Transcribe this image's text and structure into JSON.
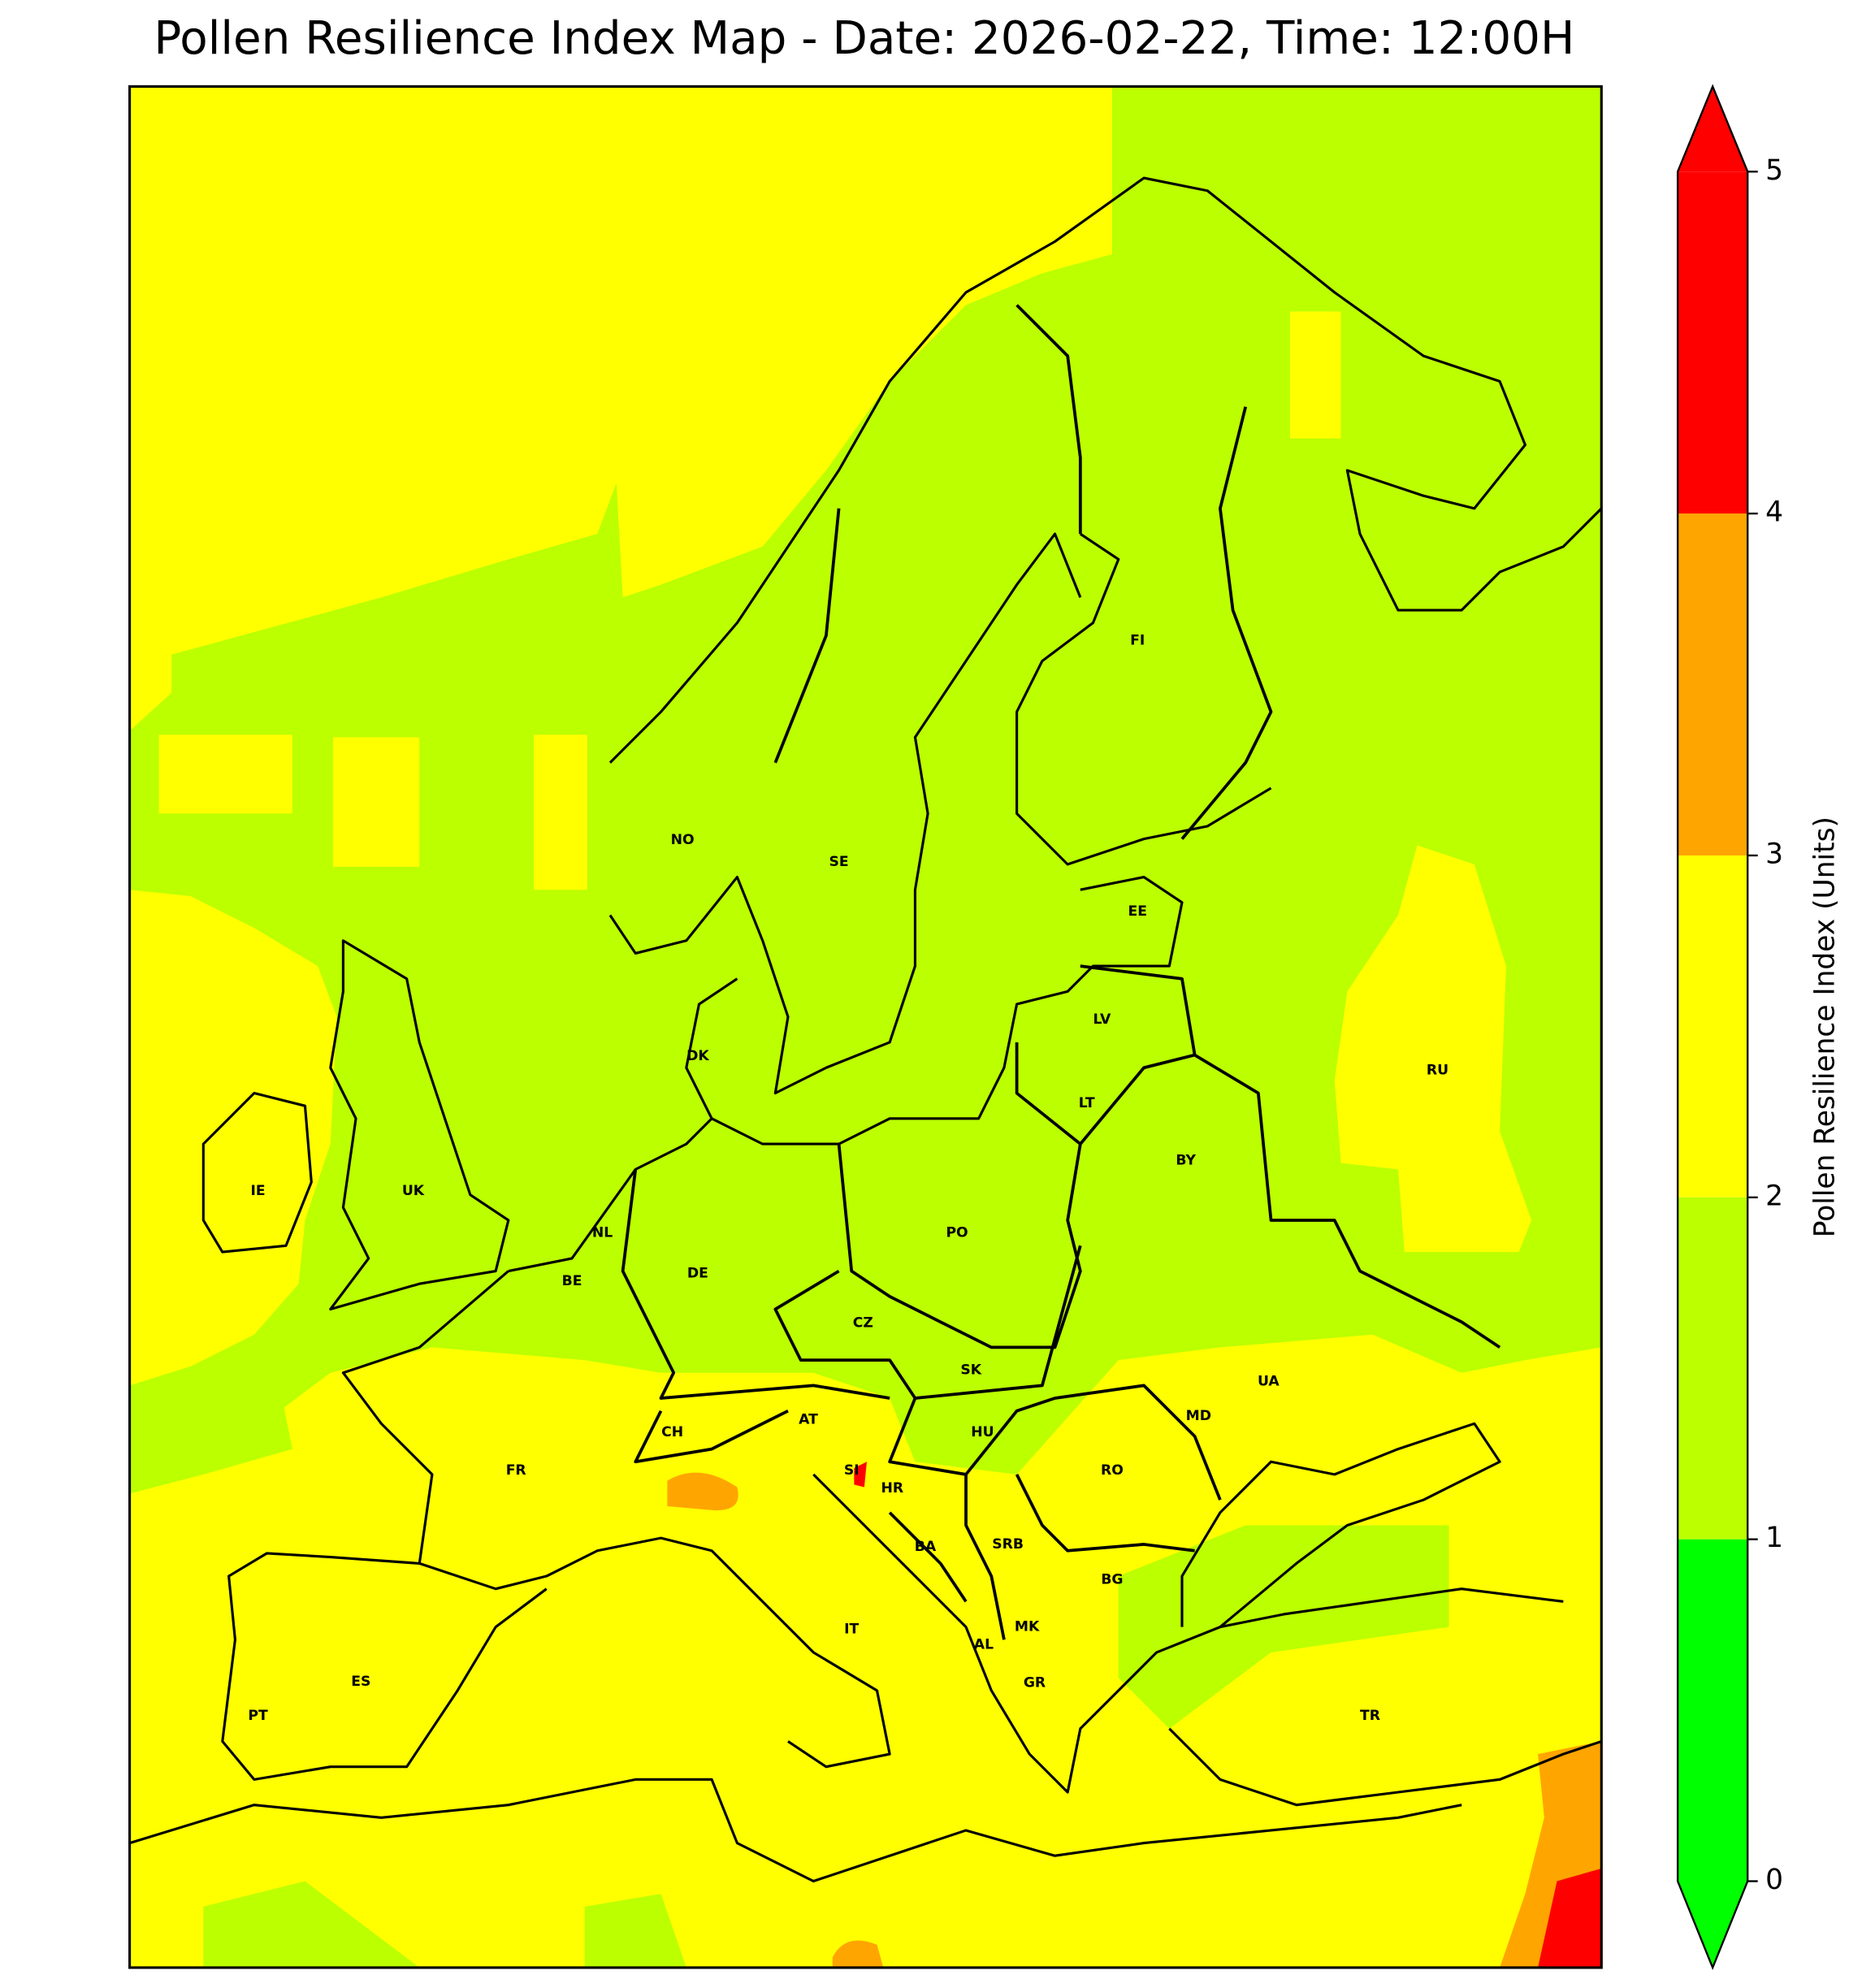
{
  "chart_data": {
    "type": "map",
    "title": "Pollen Resilience Index Map - Date: 2026-02-22, Time: 12:00H",
    "country_labels": [
      "NO",
      "SE",
      "FI",
      "EE",
      "LV",
      "LT",
      "BY",
      "RU",
      "DK",
      "IE",
      "UK",
      "NL",
      "BE",
      "DE",
      "PO",
      "CZ",
      "SK",
      "UA",
      "AT",
      "CH",
      "HU",
      "MD",
      "FR",
      "SI",
      "HR",
      "RO",
      "BA",
      "SRB",
      "BG",
      "IT",
      "MK",
      "AL",
      "ES",
      "GR",
      "PT",
      "TR"
    ],
    "colorbar": {
      "label": "Pollen Resilience Index (Units)",
      "ticks": [
        0,
        1,
        2,
        3,
        4,
        5
      ],
      "colors": [
        "#00ff00",
        "#bbff00",
        "#ffff00",
        "#ffa500",
        "#ff0000"
      ],
      "under_color": "#00ff00",
      "over_color": "#ff0000"
    }
  }
}
